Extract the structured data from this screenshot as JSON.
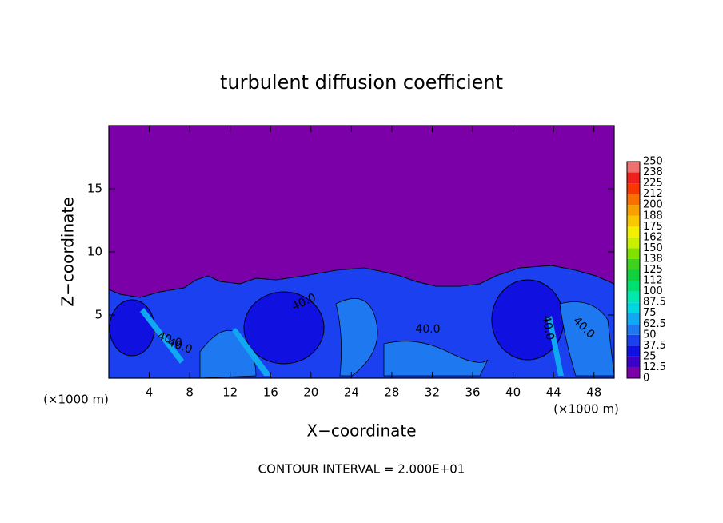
{
  "chart_data": {
    "type": "contour",
    "title": "turbulent diffusion coefficient",
    "xlabel": "X−coordinate",
    "ylabel": "Z−coordinate",
    "x_unit": "(×1000 m)",
    "contour_interval": "CONTOUR INTERVAL = 2.000E+01",
    "contour_labels": [
      "40.0",
      "40.0",
      "40.0",
      "40.0",
      "40.0",
      "40.0"
    ],
    "xlim": [
      0,
      50
    ],
    "xticks": [
      4,
      8,
      12,
      16,
      20,
      24,
      28,
      32,
      36,
      40,
      44,
      48
    ],
    "ylim": [
      0,
      20
    ],
    "yticks": [
      5,
      10,
      15
    ],
    "colorbar": {
      "levels": [
        0,
        12.5,
        25,
        37.5,
        50,
        62.5,
        75,
        87.5,
        100,
        {
          "value": 112.5,
          "label": "112"
        },
        125,
        {
          "value": 137.5,
          "label": "138"
        },
        150,
        {
          "value": 162.5,
          "label": "162"
        },
        175,
        {
          "value": 187.5,
          "label": "188"
        },
        200,
        {
          "value": 212.5,
          "label": "212"
        },
        225,
        {
          "value": 237.5,
          "label": "238"
        },
        250
      ],
      "colors": [
        "#7b00a8",
        "#3c00c8",
        "#1010e0",
        "#1a40f0",
        "#1e78f0",
        "#10a8f0",
        "#00d8e0",
        "#00e8b0",
        "#00e070",
        "#10d040",
        "#40d020",
        "#80e000",
        "#c8f000",
        "#f0f000",
        "#f8c800",
        "#f8a000",
        "#f87000",
        "#f83800",
        "#f02020",
        "#f07070"
      ]
    }
  }
}
